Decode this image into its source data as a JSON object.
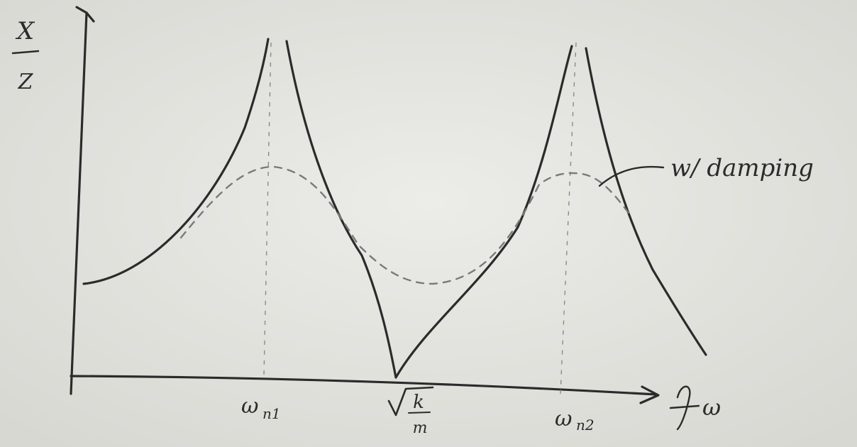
{
  "y_axis_label": {
    "numerator": "X",
    "denominator": "Z"
  },
  "x_axis_label": "ω",
  "x_marks": [
    {
      "symbol": "ω",
      "subscript": "n1"
    },
    {
      "numerator": "k",
      "denominator": "m"
    },
    {
      "symbol": "ω",
      "subscript": "n2"
    }
  ],
  "annotation": "w/ damping"
}
